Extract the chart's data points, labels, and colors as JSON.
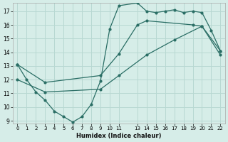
{
  "xlabel": "Humidex (Indice chaleur)",
  "bg_color": "#d6ede8",
  "grid_color": "#b8d8d2",
  "line_color": "#2a6e65",
  "xlim": [
    -0.5,
    22.5
  ],
  "ylim": [
    8.8,
    17.6
  ],
  "xtick_vals": [
    0,
    1,
    2,
    3,
    4,
    5,
    6,
    7,
    8,
    9,
    10,
    11,
    13,
    14,
    15,
    16,
    17,
    18,
    19,
    20,
    21,
    22
  ],
  "xtick_labels": [
    "0",
    "1",
    "2",
    "3",
    "4",
    "5",
    "6",
    "7",
    "8",
    "9",
    "10",
    "11",
    "13",
    "14",
    "15",
    "16",
    "17",
    "18",
    "19",
    "20",
    "21",
    "22"
  ],
  "ytick_vals": [
    9,
    10,
    11,
    12,
    13,
    14,
    15,
    16,
    17
  ],
  "line1_x": [
    0,
    1,
    2,
    3,
    4,
    5,
    6,
    7,
    8,
    9,
    10,
    11,
    13,
    14,
    15,
    16,
    17,
    18,
    19,
    20,
    21,
    22
  ],
  "line1_y": [
    13.1,
    12.0,
    11.1,
    10.5,
    9.7,
    9.3,
    8.9,
    9.3,
    10.2,
    11.9,
    15.7,
    17.4,
    17.6,
    17.0,
    16.9,
    17.0,
    17.1,
    16.9,
    17.0,
    16.9,
    15.6,
    14.1
  ],
  "line2_x": [
    0,
    3,
    9,
    11,
    13,
    14,
    19,
    20,
    22
  ],
  "line2_y": [
    13.1,
    11.8,
    12.3,
    13.9,
    16.0,
    16.3,
    16.0,
    15.9,
    14.1
  ],
  "line3_x": [
    0,
    3,
    9,
    11,
    14,
    17,
    20,
    22
  ],
  "line3_y": [
    12.0,
    11.1,
    11.3,
    12.3,
    13.8,
    14.9,
    15.9,
    13.8
  ]
}
